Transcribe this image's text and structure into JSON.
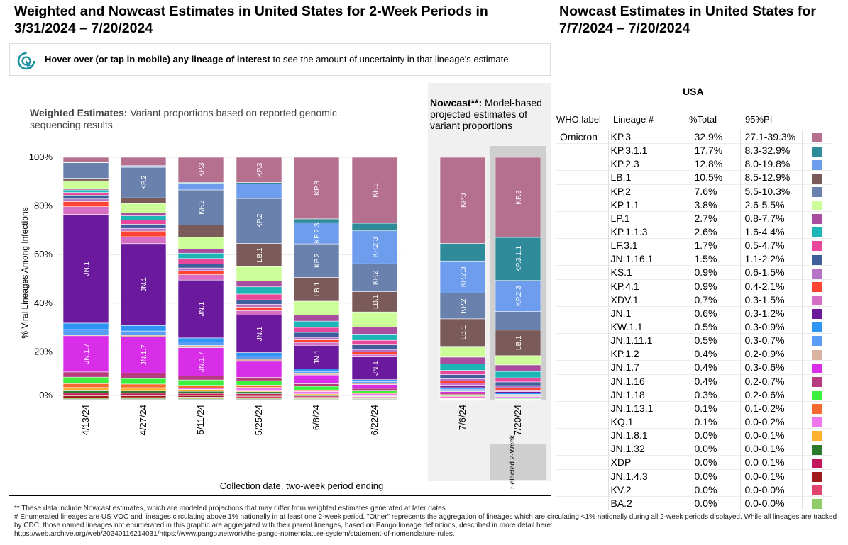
{
  "left_title": "Weighted and Nowcast Estimates in United States for 2-Week Periods in 3/31/2024 – 7/20/2024",
  "right_title": "Nowcast Estimates in United States for 7/7/2024 – 7/20/2024",
  "hover_bold": "Hover over (or tap in mobile) any lineage of interest",
  "hover_rest": " to see the amount of uncertainty in that lineage's estimate.",
  "weighted_bold": "Weighted Estimates:",
  "weighted_rest": " Variant proportions based on reported genomic sequencing results",
  "nowcast_bold": "Nowcast**:",
  "nowcast_rest": " Model-based projected estimates of variant proportions",
  "selected_label": "Selected 2-Week",
  "colors": {
    "KP.3": "#b5708f",
    "KP.3.1.1": "#2f8b9a",
    "KP.2.3": "#6e9ded",
    "LB.1": "#7b5a5a",
    "KP.2": "#6a80ad",
    "KP.1.1": "#ccff99",
    "LP.1": "#a94da0",
    "KP.1.1.3": "#1db5b5",
    "LF.3.1": "#e8489b",
    "JN.1.16.1": "#3e5f9c",
    "KS.1": "#b673c6",
    "KP.4.1": "#ff4433",
    "XDV.1": "#d66ec4",
    "JN.1": "#6b1a9e",
    "KW.1.1": "#2e95f5",
    "JN.1.11.1": "#5a9df6",
    "KP.1.2": "#d9b3a0",
    "JN.1.7": "#d92ee8",
    "JN.1.16": "#b83a7e",
    "JN.1.18": "#3df03d",
    "JN.1.13.1": "#f56a2e",
    "KQ.1": "#ee77ee",
    "JN.1.8.1": "#ffb02e",
    "JN.1.32": "#2c7b2c",
    "XDP": "#c2185b",
    "JN.1.4.3": "#a01c1c",
    "KV.2": "#e0446e",
    "BA.2": "#90cc66",
    "Other": "#a0a0a0"
  },
  "chart_data": {
    "type": "bar",
    "stacked": true,
    "ylabel": "% Viral Lineages Among Infections",
    "xlabel": "Collection date, two-week period ending",
    "ylim": [
      0,
      100
    ],
    "yticks": [
      "0%",
      "20%",
      "40%",
      "60%",
      "80%",
      "100%"
    ],
    "categories": [
      "4/13/24",
      "4/27/24",
      "5/11/24",
      "5/25/24",
      "6/8/24",
      "6/22/24",
      "7/6/24",
      "7/20/24"
    ],
    "nowcast_categories": [
      "7/6/24",
      "7/20/24"
    ],
    "selected_category": "7/20/24",
    "series": [
      {
        "name": "Other",
        "values": [
          0.5,
          0.5,
          0.5,
          0.5,
          0.5,
          0.5,
          0.3,
          0.3
        ]
      },
      {
        "name": "BA.2",
        "values": [
          0.5,
          0.5,
          0.5,
          0.4,
          0.3,
          0.3,
          0.1,
          0.0
        ]
      },
      {
        "name": "KV.2",
        "values": [
          0.0,
          0.0,
          0.2,
          0.4,
          0.3,
          0.1,
          0.1,
          0.0
        ]
      },
      {
        "name": "JN.1.4.3",
        "values": [
          0.8,
          0.7,
          0.6,
          0.4,
          0.3,
          0.2,
          0.1,
          0.0
        ]
      },
      {
        "name": "XDP",
        "values": [
          1.0,
          0.9,
          0.8,
          0.6,
          0.4,
          0.3,
          0.2,
          0.0
        ]
      },
      {
        "name": "JN.1.32",
        "values": [
          1.2,
          1.0,
          0.8,
          0.7,
          0.4,
          0.2,
          0.1,
          0.0
        ]
      },
      {
        "name": "JN.1.8.1",
        "values": [
          1.0,
          0.8,
          0.7,
          0.5,
          0.4,
          0.2,
          0.1,
          0.0
        ]
      },
      {
        "name": "KQ.1",
        "values": [
          0.0,
          0.2,
          0.5,
          1.0,
          1.0,
          0.8,
          0.5,
          0.1
        ]
      },
      {
        "name": "JN.1.13.1",
        "values": [
          1.5,
          1.3,
          1.0,
          0.8,
          0.6,
          0.4,
          0.3,
          0.1
        ]
      },
      {
        "name": "JN.1.18",
        "values": [
          2.5,
          2.0,
          2.0,
          1.5,
          1.5,
          1.0,
          0.5,
          0.3
        ]
      },
      {
        "name": "JN.1.16",
        "values": [
          2.0,
          2.0,
          1.5,
          1.2,
          1.0,
          0.8,
          0.6,
          0.4
        ]
      },
      {
        "name": "JN.1.7",
        "values": [
          14.0,
          13.0,
          10.5,
          5.5,
          3.5,
          1.5,
          0.6,
          0.4
        ]
      },
      {
        "name": "KP.1.2",
        "values": [
          0.4,
          0.6,
          0.8,
          0.8,
          0.6,
          0.5,
          0.5,
          0.4
        ]
      },
      {
        "name": "JN.1.11.1",
        "values": [
          2.0,
          1.5,
          1.3,
          1.0,
          0.8,
          0.6,
          0.5,
          0.5
        ]
      },
      {
        "name": "KW.1.1",
        "values": [
          2.5,
          2.0,
          1.5,
          1.2,
          1.0,
          0.8,
          0.6,
          0.5
        ]
      },
      {
        "name": "JN.1",
        "values": [
          42.0,
          29.5,
          21.5,
          13.0,
          9.5,
          9.0,
          1.0,
          0.6
        ]
      },
      {
        "name": "XDV.1",
        "values": [
          3.0,
          2.5,
          2.0,
          1.5,
          1.2,
          1.0,
          0.8,
          0.7
        ]
      },
      {
        "name": "KP.4.1",
        "values": [
          2.0,
          2.0,
          1.5,
          1.2,
          1.0,
          0.9,
          0.9,
          0.9
        ]
      },
      {
        "name": "KS.1",
        "values": [
          1.0,
          1.0,
          1.0,
          1.0,
          1.0,
          1.0,
          0.9,
          0.9
        ]
      },
      {
        "name": "JN.1.16.1",
        "values": [
          1.5,
          1.5,
          1.5,
          1.5,
          2.0,
          1.8,
          1.6,
          1.5
        ]
      },
      {
        "name": "LF.3.1",
        "values": [
          1.0,
          1.5,
          2.0,
          2.0,
          2.0,
          1.8,
          1.7,
          1.7
        ]
      },
      {
        "name": "KP.1.1.3",
        "values": [
          1.0,
          1.5,
          2.0,
          2.5,
          2.5,
          2.5,
          2.6,
          2.6
        ]
      },
      {
        "name": "LP.1",
        "values": [
          0.5,
          1.0,
          1.5,
          2.0,
          2.5,
          2.7,
          2.7,
          2.7
        ]
      },
      {
        "name": "KP.1.1",
        "values": [
          3.0,
          3.5,
          4.5,
          5.0,
          5.5,
          6.0,
          4.3,
          3.8
        ]
      },
      {
        "name": "LB.1",
        "values": [
          1.0,
          2.0,
          4.5,
          8.0,
          9.5,
          8.0,
          11.0,
          10.5
        ]
      },
      {
        "name": "KP.2",
        "values": [
          6.0,
          11.0,
          13.0,
          15.5,
          13.5,
          11.0,
          10.3,
          7.6
        ]
      },
      {
        "name": "KP.2.3",
        "values": [
          0.2,
          0.5,
          2.5,
          5.0,
          8.5,
          13.0,
          12.8,
          12.8
        ]
      },
      {
        "name": "KP.3.1.1",
        "values": [
          0.1,
          0.1,
          0.3,
          0.5,
          1.5,
          3.0,
          7.0,
          17.7
        ]
      },
      {
        "name": "KP.3",
        "values": [
          1.8,
          3.0,
          9.3,
          8.7,
          24.7,
          26.0,
          34.4,
          32.9
        ]
      }
    ]
  },
  "table": {
    "region": "USA",
    "headers": {
      "who": "WHO label",
      "lineage": "Lineage #",
      "pct": "%Total",
      "pi": "95%PI"
    },
    "who_label": "Omicron",
    "rows": [
      {
        "lineage": "KP.3",
        "pct": "32.9%",
        "pi": "27.1-39.3%"
      },
      {
        "lineage": "KP.3.1.1",
        "pct": "17.7%",
        "pi": "8.3-32.9%"
      },
      {
        "lineage": "KP.2.3",
        "pct": "12.8%",
        "pi": "8.0-19.8%"
      },
      {
        "lineage": "LB.1",
        "pct": "10.5%",
        "pi": "8.5-12.9%"
      },
      {
        "lineage": "KP.2",
        "pct": "7.6%",
        "pi": "5.5-10.3%"
      },
      {
        "lineage": "KP.1.1",
        "pct": "3.8%",
        "pi": "2.6-5.5%"
      },
      {
        "lineage": "LP.1",
        "pct": "2.7%",
        "pi": "0.8-7.7%"
      },
      {
        "lineage": "KP.1.1.3",
        "pct": "2.6%",
        "pi": "1.6-4.4%"
      },
      {
        "lineage": "LF.3.1",
        "pct": "1.7%",
        "pi": "0.5-4.7%"
      },
      {
        "lineage": "JN.1.16.1",
        "pct": "1.5%",
        "pi": "1.1-2.2%"
      },
      {
        "lineage": "KS.1",
        "pct": "0.9%",
        "pi": "0.6-1.5%"
      },
      {
        "lineage": "KP.4.1",
        "pct": "0.9%",
        "pi": "0.4-2.1%"
      },
      {
        "lineage": "XDV.1",
        "pct": "0.7%",
        "pi": "0.3-1.5%"
      },
      {
        "lineage": "JN.1",
        "pct": "0.6%",
        "pi": "0.3-1.2%"
      },
      {
        "lineage": "KW.1.1",
        "pct": "0.5%",
        "pi": "0.3-0.9%"
      },
      {
        "lineage": "JN.1.11.1",
        "pct": "0.5%",
        "pi": "0.3-0.7%"
      },
      {
        "lineage": "KP.1.2",
        "pct": "0.4%",
        "pi": "0.2-0.9%"
      },
      {
        "lineage": "JN.1.7",
        "pct": "0.4%",
        "pi": "0.3-0.6%"
      },
      {
        "lineage": "JN.1.16",
        "pct": "0.4%",
        "pi": "0.2-0.7%"
      },
      {
        "lineage": "JN.1.18",
        "pct": "0.3%",
        "pi": "0.2-0.6%"
      },
      {
        "lineage": "JN.1.13.1",
        "pct": "0.1%",
        "pi": "0.1-0.2%"
      },
      {
        "lineage": "KQ.1",
        "pct": "0.1%",
        "pi": "0.0-0.2%"
      },
      {
        "lineage": "JN.1.8.1",
        "pct": "0.0%",
        "pi": "0.0-0.1%"
      },
      {
        "lineage": "JN.1.32",
        "pct": "0.0%",
        "pi": "0.0-0.1%"
      },
      {
        "lineage": "XDP",
        "pct": "0.0%",
        "pi": "0.0-0.1%"
      },
      {
        "lineage": "JN.1.4.3",
        "pct": "0.0%",
        "pi": "0.0-0.1%"
      },
      {
        "lineage": "KV.2",
        "pct": "0.0%",
        "pi": "0.0-0.0%"
      },
      {
        "lineage": "BA.2",
        "pct": "0.0%",
        "pi": "0.0-0.0%"
      }
    ]
  },
  "footnotes": [
    "**     These data include Nowcast estimates, which are modeled projections that may differ from weighted estimates generated at later dates",
    "# Enumerated lineages are US VOC and lineages circulating above 1% nationally in at least one 2-week period. \"Other\" represents the aggregation of lineages which are circulating <1% nationally during all 2-week periods displayed.  While all lineages are tracked by CDC, those named lineages not enumerated in this graphic are aggregated with their parent lineages, based on Pango lineage definitions, described in more detail here:",
    "https://web.archive.org/web/20240116214031/https://www.pango.network/the-pango-nomenclature-system/statement-of-nomenclature-rules."
  ]
}
